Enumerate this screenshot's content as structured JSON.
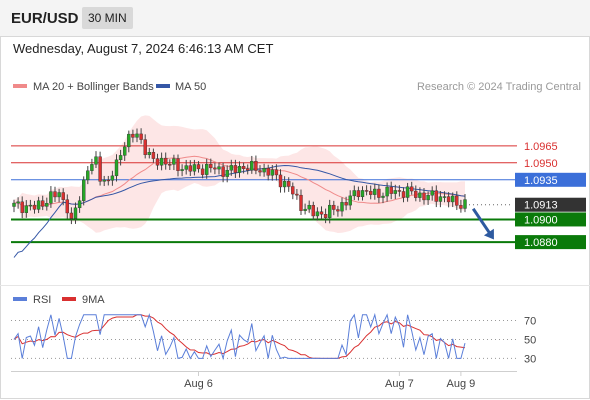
{
  "header": {
    "symbol": "EUR/USD",
    "timeframe": "30 MIN",
    "timestamp": "Wednesday, August 7, 2024 6:46:13 AM CET"
  },
  "legend": {
    "items": [
      {
        "label": "MA 20 + Bollinger Bands",
        "color": "#f08a8a"
      },
      {
        "label": "MA 50",
        "color": "#3557a6"
      }
    ],
    "credit": "Research © 2024 Trading Central"
  },
  "rsi_legend": {
    "items": [
      {
        "label": "RSI",
        "color": "#5b7fd9"
      },
      {
        "label": "9MA",
        "color": "#d93030"
      }
    ]
  },
  "colors": {
    "resistance": "#d93030",
    "pivot": "#3b6fd9",
    "support": "#0a7a0a",
    "current_price_bg": "#333333",
    "candle_up": "#26a626",
    "candle_down": "#d93030",
    "band_fill": "#fde2e2",
    "forecast_arrow": "#2e5aa0"
  },
  "chart_data": [
    {
      "type": "candlestick",
      "title": "EUR/USD",
      "ylim": [
        1.0862,
        1.1005
      ],
      "x_tick_labels": [
        {
          "label": "Aug 6",
          "index": 45
        },
        {
          "label": "Aug 7",
          "index": 94
        },
        {
          "label": "Aug 9",
          "index": 109
        }
      ],
      "x_count": 120,
      "levels": [
        {
          "label": "1.0965",
          "value": 1.0965,
          "kind": "resistance"
        },
        {
          "label": "1.0950",
          "value": 1.095,
          "kind": "resistance"
        },
        {
          "label": "1.0935",
          "value": 1.0935,
          "kind": "pivot"
        },
        {
          "label": "1.0900",
          "value": 1.09,
          "kind": "support"
        },
        {
          "label": "1.0880",
          "value": 1.088,
          "kind": "support"
        }
      ],
      "current_price": {
        "label": "1.0913",
        "value": 1.0913
      },
      "forecast": {
        "from_index": 112,
        "from_value": 1.0909,
        "to_index": 117,
        "to_value": 1.0883
      },
      "series": [
        {
          "name": "MA 20 + Bollinger Bands",
          "kind": "ma_bands"
        },
        {
          "name": "MA 50",
          "kind": "ma"
        }
      ]
    },
    {
      "type": "line",
      "title": "RSI",
      "ylim": [
        22,
        80
      ],
      "y_ticks": [
        70,
        50,
        30
      ],
      "series": [
        {
          "name": "RSI"
        },
        {
          "name": "9MA"
        }
      ]
    }
  ]
}
